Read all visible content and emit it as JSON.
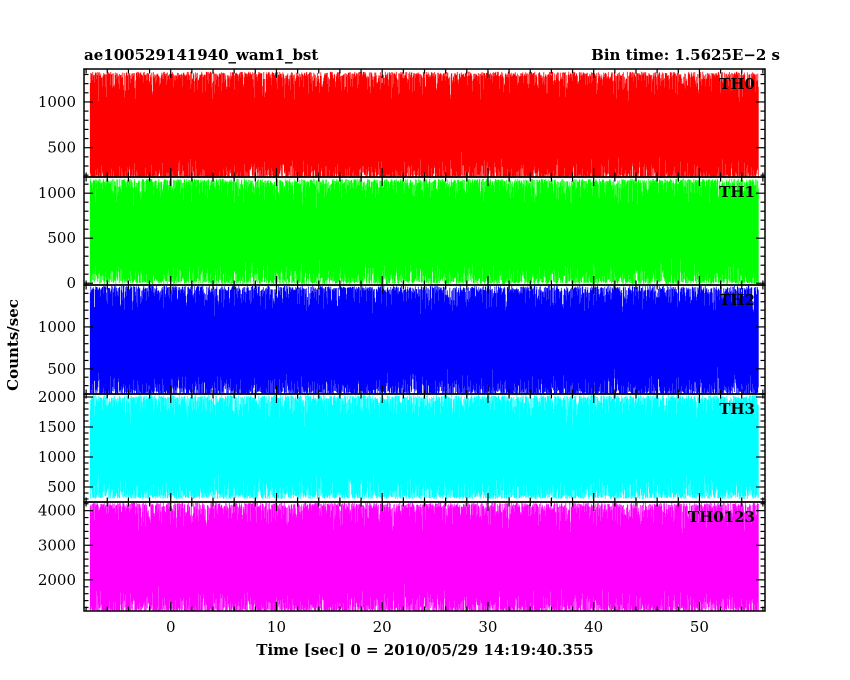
{
  "title_left": "ae100529141940_wam1_bst",
  "title_right": "Bin time: 1.5625E−2 s",
  "chart_data": {
    "type": "line",
    "xlabel": "Time [sec] 0 = 2010/05/29 14:19:40.355",
    "ylabel": "Counts/sec",
    "xlim": [
      -8.2,
      56.2
    ],
    "x_data_range": [
      -7.6,
      55.6
    ],
    "x_ticks_major": [
      0,
      10,
      20,
      30,
      40,
      50
    ],
    "x_minor_step": 2,
    "bin_time": 0.015625,
    "panels": [
      {
        "name": "TH0",
        "color": "#ff0000",
        "ylim": [
          180,
          1360
        ],
        "y_ticks_major": [
          500,
          1000
        ],
        "y_minor_step": 100,
        "band": [
          140,
          1330
        ]
      },
      {
        "name": "TH1",
        "color": "#00ff00",
        "ylim": [
          -20,
          1180
        ],
        "y_ticks_major": [
          0,
          500,
          1000
        ],
        "y_minor_step": 100,
        "band": [
          -10,
          1160
        ]
      },
      {
        "name": "TH2",
        "color": "#0000ff",
        "ylim": [
          200,
          1500
        ],
        "y_ticks_major": [
          500,
          1000
        ],
        "y_minor_step": 100,
        "band": [
          180,
          1490
        ]
      },
      {
        "name": "TH3",
        "color": "#00ffff",
        "ylim": [
          250,
          2050
        ],
        "y_ticks_major": [
          500,
          1000,
          1500,
          2000
        ],
        "y_minor_step": 100,
        "band": [
          300,
          2030
        ]
      },
      {
        "name": "TH0123",
        "color": "#ff00ff",
        "ylim": [
          1100,
          4250
        ],
        "y_ticks_major": [
          2000,
          3000,
          4000
        ],
        "y_minor_step": 200,
        "band": [
          1050,
          4230
        ]
      }
    ]
  }
}
